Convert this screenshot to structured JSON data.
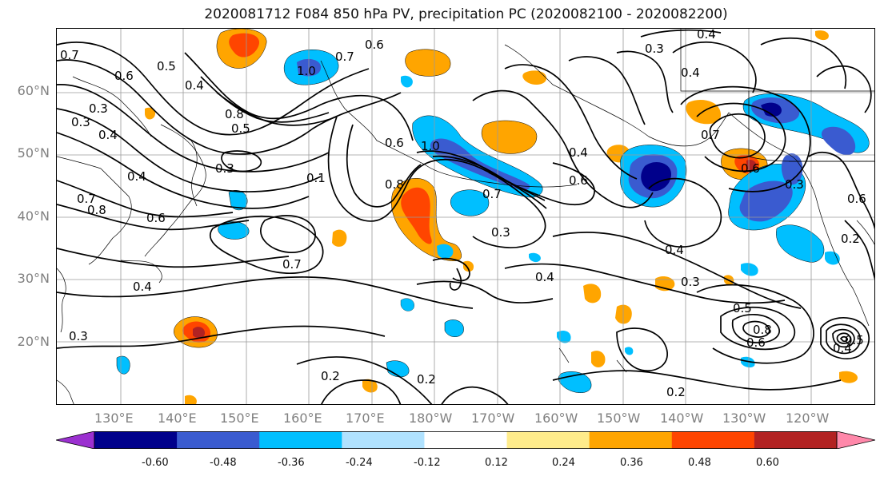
{
  "title": "2020081712 F084 850 hPa PV, precipitation PC (2020082100 - 2020082200)",
  "lat_labels": [
    "60°N",
    "50°N",
    "40°N",
    "30°N",
    "20°N"
  ],
  "lon_labels": [
    "130°E",
    "140°E",
    "150°E",
    "160°E",
    "170°E",
    "180°W",
    "170°W",
    "160°W",
    "150°W",
    "140°W",
    "130°W",
    "120°W"
  ],
  "colorbar": {
    "colors": [
      "#9b30d0",
      "#00008b",
      "#3a5bd0",
      "#00bfff",
      "#b0e2ff",
      "#ffffff",
      "#ffec8b",
      "#ffa500",
      "#ff4500",
      "#b22222",
      "#ff88aa"
    ],
    "tick_labels": [
      "-0.60",
      "-0.48",
      "-0.36",
      "-0.24",
      "-0.12",
      "0.12",
      "0.24",
      "0.36",
      "0.48",
      "0.60"
    ]
  },
  "contour_labels": [
    {
      "text": "0.7"
    },
    {
      "text": "0.6"
    },
    {
      "text": "0.5"
    },
    {
      "text": "0.4"
    },
    {
      "text": "0.3"
    },
    {
      "text": "0.4"
    },
    {
      "text": "0.3"
    },
    {
      "text": "0.5"
    },
    {
      "text": "0.8"
    },
    {
      "text": "0.3"
    },
    {
      "text": "0.4"
    },
    {
      "text": "0.7"
    },
    {
      "text": "0.6"
    },
    {
      "text": "0.8"
    },
    {
      "text": "0.4"
    },
    {
      "text": "0.7"
    },
    {
      "text": "0.4"
    },
    {
      "text": "0.3"
    },
    {
      "text": "0.2"
    },
    {
      "text": "0.2"
    },
    {
      "text": "0.1"
    },
    {
      "text": "0.6"
    },
    {
      "text": "1.0"
    },
    {
      "text": "0.7"
    },
    {
      "text": "0.6"
    },
    {
      "text": "0.3"
    },
    {
      "text": "0.4"
    },
    {
      "text": "0.8"
    },
    {
      "text": "1.0"
    },
    {
      "text": "0.7"
    },
    {
      "text": "0.6"
    },
    {
      "text": "0.4"
    },
    {
      "text": "0.3"
    },
    {
      "text": "0.4"
    },
    {
      "text": "0.3"
    },
    {
      "text": "0.5"
    },
    {
      "text": "0.8"
    },
    {
      "text": "0.6"
    },
    {
      "text": "0.4"
    },
    {
      "text": "0.2"
    },
    {
      "text": "0.7"
    },
    {
      "text": "0.6"
    },
    {
      "text": "0.3"
    },
    {
      "text": "0.2"
    },
    {
      "text": "0.6"
    },
    {
      "text": "0.4"
    },
    {
      "text": "0.5"
    }
  ]
}
